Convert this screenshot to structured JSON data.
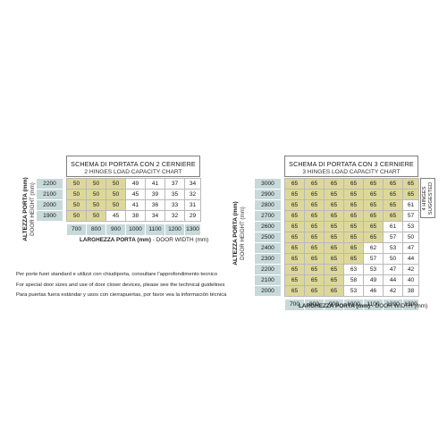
{
  "chart_2_hinges": {
    "title_it": "SCHEMA DI PORTATA CON 2 CERNIERE",
    "title_en": "2 HINGES LOAD CAPACITY CHART",
    "y_label_it": "ALTEZZA PORTA (mm)",
    "y_label_en": "DOOR HEIGHT (mm)",
    "x_label_it": "LARGHEZZA PORTA (mm)",
    "x_label_en": "- DOOR WIDTH (mm)",
    "widths": [
      "700",
      "800",
      "900",
      "1000",
      "1100",
      "1200",
      "1300"
    ],
    "rows": [
      {
        "height": "2200",
        "values": [
          "50",
          "50",
          "50",
          "49",
          "41",
          "37",
          "34"
        ],
        "highlighted": 3
      },
      {
        "height": "2100",
        "values": [
          "50",
          "50",
          "50",
          "45",
          "39",
          "35",
          "32"
        ],
        "highlighted": 3
      },
      {
        "height": "2000",
        "values": [
          "50",
          "50",
          "50",
          "41",
          "36",
          "33",
          "31"
        ],
        "highlighted": 3
      },
      {
        "height": "1900",
        "values": [
          "50",
          "50",
          "45",
          "38",
          "34",
          "32",
          "29"
        ],
        "highlighted": 2
      }
    ]
  },
  "chart_3_hinges": {
    "title_it": "SCHEMA DI PORTATA CON 3 CERNIERE",
    "title_en": "3 HINGES LOAD CAPACITY CHART",
    "y_label_it": "ALTEZZA PORTA (mm)",
    "y_label_en": "DOOR HEIGHT (mm)",
    "x_label_it": "LARGHEZZA PORTA (mm)",
    "x_label_en": "- DOOR WIDTH (mm)",
    "side_note_line1": "4 HINGES",
    "side_note_line2": "SUGGESTED",
    "widths": [
      "700",
      "800",
      "900",
      "1000",
      "1100",
      "1200",
      "1300"
    ],
    "rows": [
      {
        "height": "3000",
        "values": [
          "65",
          "65",
          "65",
          "65",
          "65",
          "65",
          "65"
        ],
        "highlighted": 7
      },
      {
        "height": "2900",
        "values": [
          "65",
          "65",
          "65",
          "65",
          "65",
          "65",
          "65"
        ],
        "highlighted": 7
      },
      {
        "height": "2800",
        "values": [
          "65",
          "65",
          "65",
          "65",
          "65",
          "65",
          "61"
        ],
        "highlighted": 6
      },
      {
        "height": "2700",
        "values": [
          "65",
          "65",
          "65",
          "65",
          "65",
          "65",
          "57"
        ],
        "highlighted": 6
      },
      {
        "height": "2600",
        "values": [
          "65",
          "65",
          "65",
          "65",
          "65",
          "61",
          "53"
        ],
        "highlighted": 5
      },
      {
        "height": "2500",
        "values": [
          "65",
          "65",
          "65",
          "65",
          "65",
          "57",
          "50"
        ],
        "highlighted": 5
      },
      {
        "height": "2400",
        "values": [
          "65",
          "65",
          "65",
          "65",
          "62",
          "53",
          "47"
        ],
        "highlighted": 4
      },
      {
        "height": "2300",
        "values": [
          "65",
          "65",
          "65",
          "65",
          "57",
          "50",
          "44"
        ],
        "highlighted": 4
      },
      {
        "height": "2200",
        "values": [
          "65",
          "65",
          "65",
          "63",
          "53",
          "47",
          "42"
        ],
        "highlighted": 3
      },
      {
        "height": "2100",
        "values": [
          "65",
          "65",
          "65",
          "58",
          "49",
          "44",
          "40"
        ],
        "highlighted": 3
      },
      {
        "height": "2000",
        "values": [
          "65",
          "65",
          "65",
          "53",
          "46",
          "42",
          "38"
        ],
        "highlighted": 3
      }
    ]
  },
  "notes": [
    "Per porte fuori standard e utilizzi con chiudiporta, consultare l'approfondimento tecnico",
    "For special door sizes and use of door closer devices, please see the technical guidelines",
    "Para puertas fuera estándar y usos con cierrapuertas, por favor vea la información técnica"
  ],
  "colors": {
    "highlight": "#ddd89a",
    "header_fill": "#c8d9da",
    "cell_border": "#b9b9b9"
  }
}
